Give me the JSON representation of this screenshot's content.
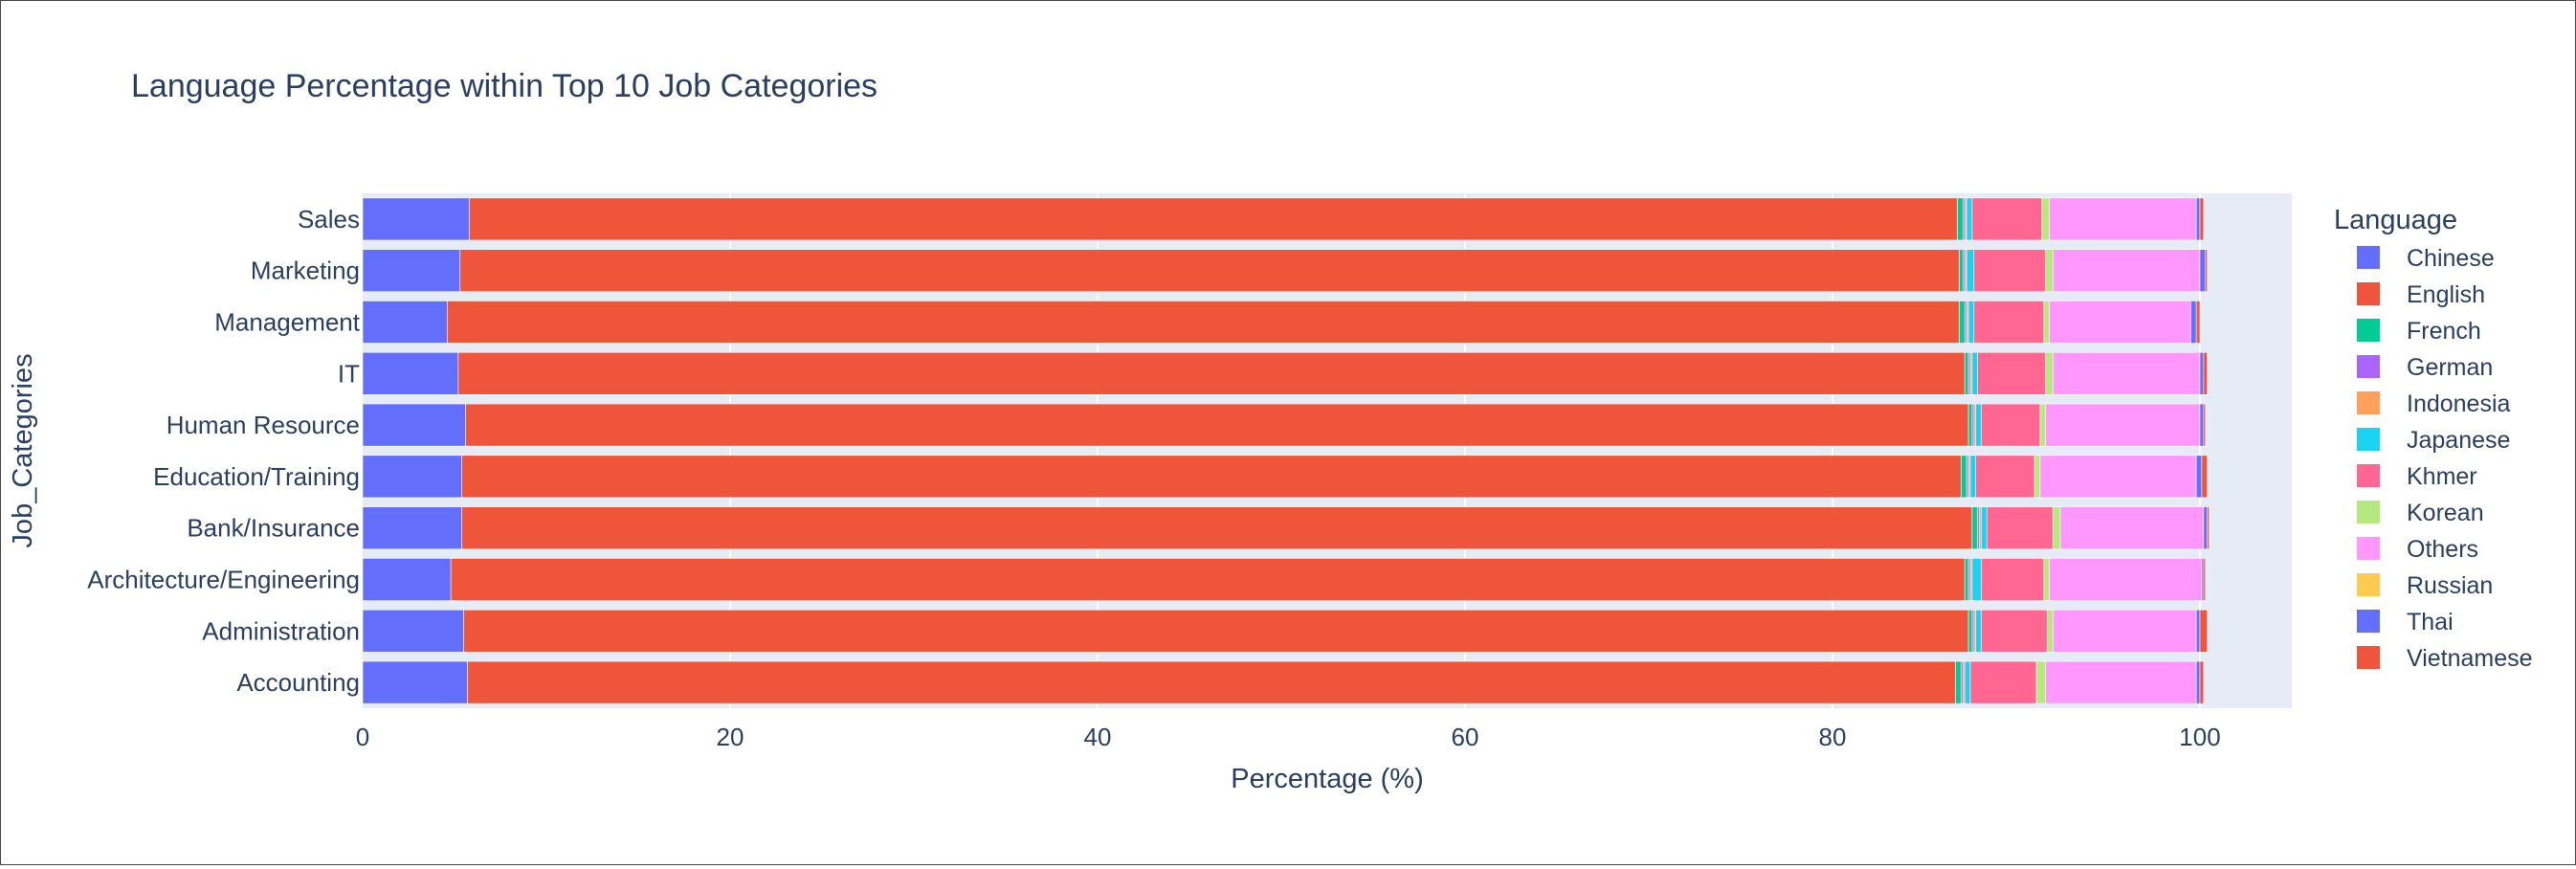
{
  "chart_data": {
    "type": "bar",
    "orientation": "horizontal",
    "barmode": "stack",
    "title": "Language Percentage within Top 10 Job Categories",
    "xlabel": "Percentage (%)",
    "ylabel": "Job_Categories",
    "xlim": [
      0,
      105
    ],
    "xticks": [
      "0",
      "20",
      "40",
      "60",
      "80",
      "100"
    ],
    "grid": true,
    "legend_title": "Language",
    "legend_position": "right",
    "categories": [
      "Sales",
      "Marketing",
      "Management",
      "IT",
      "Human Resource",
      "Education/Training",
      "Bank/Insurance",
      "Architecture/Engineering",
      "Administration",
      "Accounting"
    ],
    "series": [
      {
        "name": "Chinese",
        "color": "#636efa",
        "values": [
          5.8,
          5.3,
          4.6,
          5.2,
          5.6,
          5.4,
          5.4,
          4.8,
          5.5,
          5.7
        ]
      },
      {
        "name": "English",
        "color": "#EF553B",
        "values": [
          81.0,
          81.6,
          82.3,
          82.0,
          81.8,
          81.6,
          82.2,
          82.4,
          81.9,
          81.0
        ]
      },
      {
        "name": "French",
        "color": "#00cc96",
        "values": [
          0.3,
          0.2,
          0.3,
          0.2,
          0.2,
          0.3,
          0.3,
          0.2,
          0.2,
          0.3
        ]
      },
      {
        "name": "German",
        "color": "#ab63fa",
        "values": [
          0.1,
          0.1,
          0.1,
          0.1,
          0.1,
          0.1,
          0.1,
          0.1,
          0.1,
          0.1
        ]
      },
      {
        "name": "Indonesia",
        "color": "#FFA15A",
        "values": [
          0.1,
          0.1,
          0.1,
          0.1,
          0.1,
          0.1,
          0.1,
          0.1,
          0.1,
          0.1
        ]
      },
      {
        "name": "Japanese",
        "color": "#19d3f3",
        "values": [
          0.3,
          0.4,
          0.3,
          0.3,
          0.3,
          0.3,
          0.3,
          0.5,
          0.3,
          0.3
        ]
      },
      {
        "name": "Khmer",
        "color": "#FF6692",
        "values": [
          3.8,
          3.9,
          3.8,
          3.7,
          3.2,
          3.2,
          3.6,
          3.4,
          3.6,
          3.6
        ]
      },
      {
        "name": "Korean",
        "color": "#B6E880",
        "values": [
          0.4,
          0.4,
          0.3,
          0.4,
          0.3,
          0.3,
          0.4,
          0.3,
          0.3,
          0.5
        ]
      },
      {
        "name": "Others",
        "color": "#FF97FF",
        "values": [
          8.0,
          8.0,
          7.7,
          8.0,
          8.4,
          8.5,
          7.8,
          8.3,
          7.8,
          8.2
        ]
      },
      {
        "name": "Russian",
        "color": "#FECB52",
        "values": [
          0.0,
          0.0,
          0.0,
          0.0,
          0.0,
          0.0,
          0.0,
          0.0,
          0.0,
          0.0
        ]
      },
      {
        "name": "Thai",
        "color": "#636efa",
        "values": [
          0.2,
          0.3,
          0.3,
          0.2,
          0.2,
          0.3,
          0.2,
          0.1,
          0.2,
          0.2
        ]
      },
      {
        "name": "Vietnamese",
        "color": "#EF553B",
        "values": [
          0.2,
          0.1,
          0.2,
          0.2,
          0.1,
          0.3,
          0.1,
          0.1,
          0.4,
          0.2
        ]
      }
    ]
  }
}
